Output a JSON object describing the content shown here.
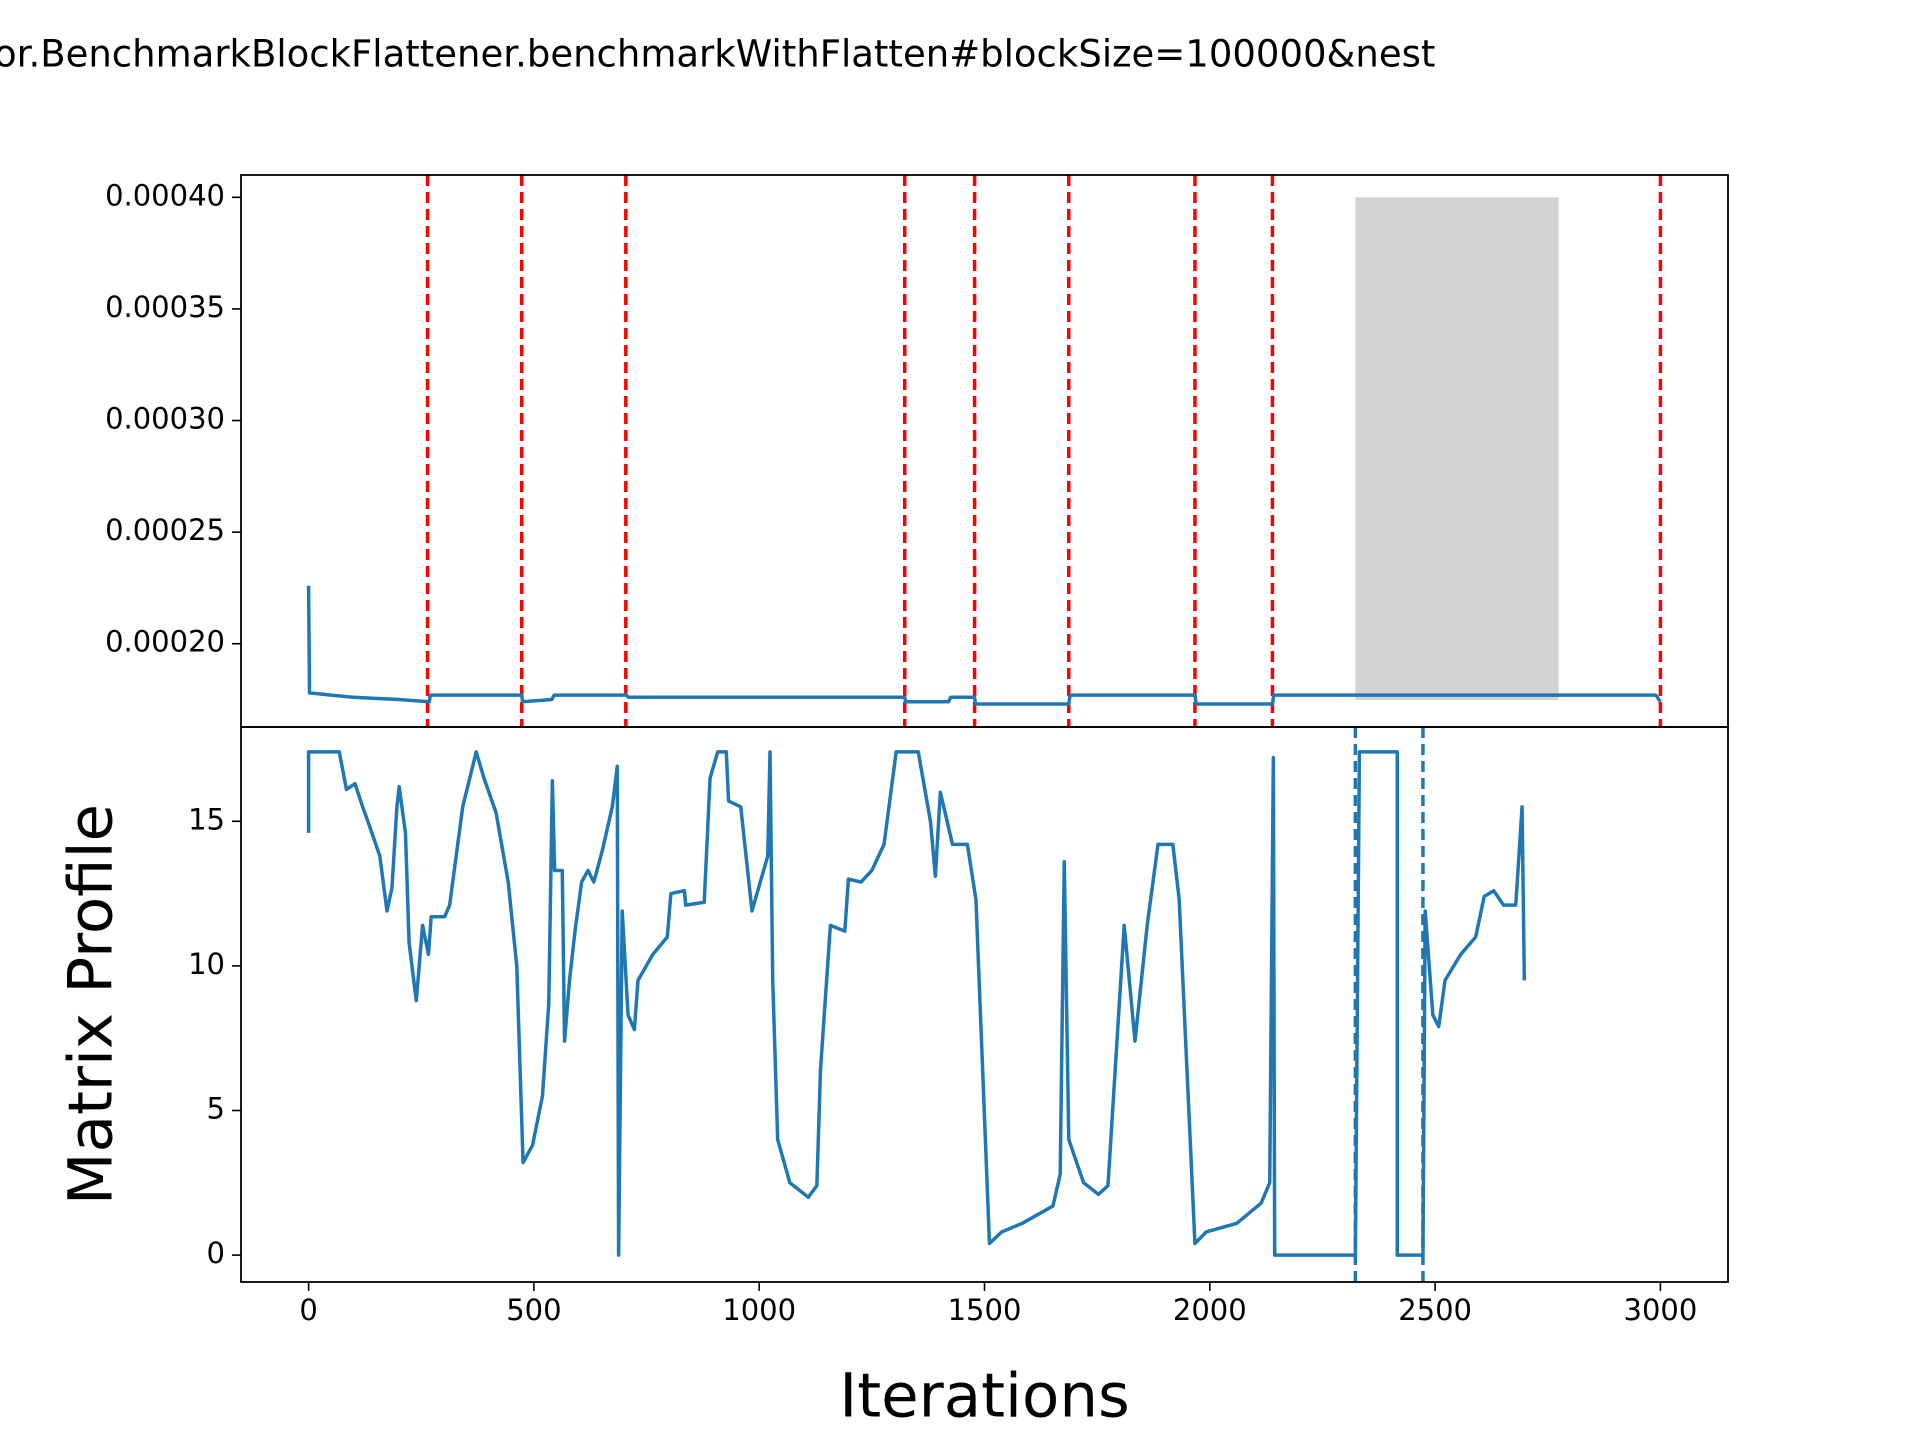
{
  "title": "or.BenchmarkBlockFlattener.benchmarkWithFlatten#blockSize=100000&nest",
  "chart_data": [
    {
      "type": "line",
      "x": [
        0,
        2,
        50,
        100,
        200,
        268,
        270,
        473,
        475,
        540,
        545,
        705,
        710,
        1323,
        1325,
        1420,
        1425,
        1478,
        1480,
        1687,
        1690,
        1967,
        1970,
        2139,
        2142,
        2990,
        3000
      ],
      "series": [
        {
          "color": "#1f77b4",
          "values": [
            0.000226,
            0.000178,
            0.000177,
            0.000176,
            0.000175,
            0.000174,
            0.000177,
            0.000177,
            0.000174,
            0.000175,
            0.000177,
            0.000177,
            0.000176,
            0.000176,
            0.000174,
            0.000174,
            0.000176,
            0.000176,
            0.000173,
            0.000173,
            0.000177,
            0.000177,
            0.000173,
            0.000173,
            0.000177,
            0.000177,
            0.000174
          ]
        }
      ],
      "vlines": {
        "x": [
          264,
          473,
          704,
          1323,
          1478,
          1687,
          1967,
          2139,
          3000
        ],
        "color": "#ff0000",
        "dashed": true
      },
      "span": {
        "x": [
          2323,
          2774
        ],
        "y": [
          0.0001748,
          0.0004
        ],
        "color": "#d3d3d3"
      },
      "xlim": [
        -150,
        3150
      ],
      "ylim": [
        0.0001627,
        0.00041
      ],
      "yticks": [
        {
          "value": 0.0002,
          "label": "0.00020"
        },
        {
          "value": 0.00025,
          "label": "0.00025"
        },
        {
          "value": 0.0003,
          "label": "0.00030"
        },
        {
          "value": 0.00035,
          "label": "0.00035"
        },
        {
          "value": 0.0004,
          "label": "0.00040"
        }
      ]
    },
    {
      "type": "line",
      "xlabel": "Iterations",
      "ylabel": "Matrix Profile",
      "x": [
        0,
        0,
        68,
        84,
        103,
        120,
        136,
        158,
        174,
        185,
        196,
        201,
        215,
        223,
        239,
        253,
        266,
        272,
        302,
        313,
        342,
        372,
        389,
        416,
        443,
        462,
        476,
        497,
        519,
        533,
        541,
        546,
        563,
        568,
        579,
        592,
        606,
        620,
        633,
        652,
        674,
        685,
        688,
        696,
        709,
        723,
        731,
        764,
        796,
        804,
        834,
        837,
        878,
        891,
        908,
        927,
        932,
        959,
        984,
        1019,
        1024,
        1030,
        1041,
        1068,
        1109,
        1128,
        1136,
        1158,
        1190,
        1198,
        1226,
        1250,
        1277,
        1304,
        1353,
        1380,
        1391,
        1402,
        1429,
        1462,
        1481,
        1511,
        1538,
        1584,
        1652,
        1668,
        1677,
        1687,
        1720,
        1753,
        1774,
        1810,
        1834,
        1861,
        1885,
        1918,
        1932,
        1967,
        1992,
        2060,
        2114,
        2133,
        2141,
        2144,
        2323,
        2332,
        2416,
        2416,
        2473,
        2478,
        2495,
        2508,
        2522,
        2557,
        2590,
        2609,
        2630,
        2652,
        2679,
        2693,
        2698
      ],
      "series": [
        {
          "color": "#1f77b4",
          "values": [
            14.6,
            17.4,
            17.4,
            16.1,
            16.3,
            15.5,
            14.8,
            13.8,
            11.9,
            12.7,
            15.5,
            16.2,
            14.6,
            10.8,
            8.8,
            11.4,
            10.4,
            11.7,
            11.7,
            12.1,
            15.5,
            17.4,
            16.5,
            15.3,
            12.9,
            10.0,
            3.2,
            3.8,
            5.5,
            8.7,
            16.4,
            13.3,
            13.3,
            7.4,
            9.5,
            11.3,
            12.9,
            13.3,
            12.9,
            14.0,
            15.5,
            16.9,
            0,
            11.9,
            8.3,
            7.8,
            9.5,
            10.4,
            11.0,
            12.5,
            12.6,
            12.1,
            12.2,
            16.5,
            17.4,
            17.4,
            15.7,
            15.5,
            11.9,
            13.8,
            17.4,
            9.5,
            4.0,
            2.5,
            2.0,
            2.4,
            6.4,
            11.4,
            11.2,
            13.0,
            12.9,
            13.3,
            14.2,
            17.4,
            17.4,
            15.0,
            13.1,
            16.0,
            14.2,
            14.2,
            12.3,
            0.4,
            0.8,
            1.1,
            1.7,
            2.8,
            13.6,
            4.0,
            2.5,
            2.1,
            2.4,
            11.4,
            7.4,
            11.4,
            14.2,
            14.2,
            12.3,
            0.4,
            0.8,
            1.1,
            1.8,
            2.5,
            17.2,
            0,
            0,
            17.4,
            17.4,
            0,
            0,
            11.9,
            8.3,
            7.9,
            9.5,
            10.4,
            11.0,
            12.4,
            12.6,
            12.1,
            12.1,
            15.5,
            9.5
          ]
        }
      ],
      "vlines": {
        "x": [
          2323,
          2473
        ],
        "color": "#1f77b4",
        "dashed": true
      },
      "xlim": [
        -150,
        3150
      ],
      "ylim": [
        -0.93,
        18.26
      ],
      "xticks": [
        0,
        500,
        1000,
        1500,
        2000,
        2500,
        3000
      ],
      "yticks": [
        0,
        5,
        10,
        15
      ]
    }
  ]
}
